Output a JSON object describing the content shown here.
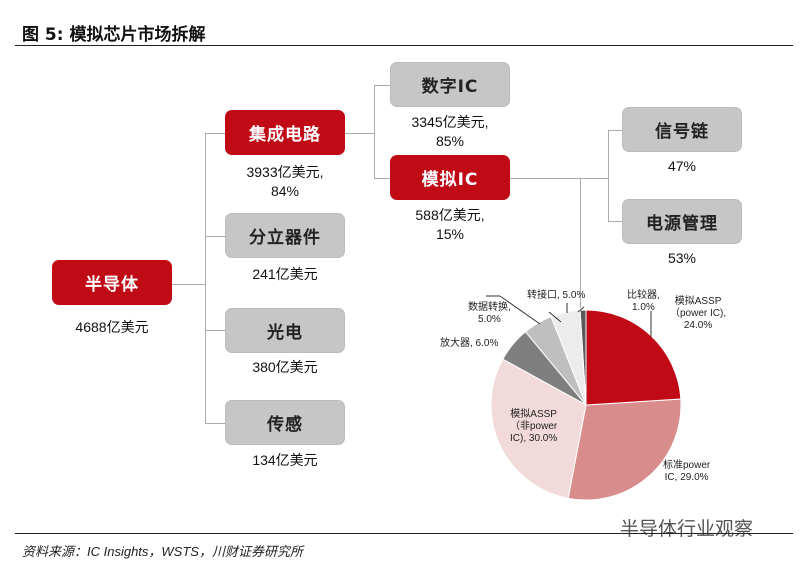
{
  "title": "图 5:  模拟芯片市场拆解",
  "nodes": {
    "semi": {
      "label": "半导体",
      "value": "4688亿美元"
    },
    "ic": {
      "label": "集成电路",
      "value": "3933亿美元,",
      "pct": "84%"
    },
    "discrete": {
      "label": "分立器件",
      "value": "241亿美元"
    },
    "opto": {
      "label": "光电",
      "value": "380亿美元"
    },
    "sensor": {
      "label": "传感",
      "value": "134亿美元"
    },
    "digital": {
      "label": "数字IC",
      "value": "3345亿美元,",
      "pct": "85%"
    },
    "analog": {
      "label": "模拟IC",
      "value": "588亿美元,",
      "pct": "15%"
    },
    "signal": {
      "label": "信号链",
      "pct": "47%"
    },
    "power": {
      "label": "电源管理",
      "pct": "53%"
    }
  },
  "colors": {
    "red": "#c00a16",
    "gray": "#c6c6c6"
  },
  "chart_data": {
    "type": "pie",
    "slices": [
      {
        "label": "模拟ASSP（power IC), 24.0%",
        "value": 24.0,
        "color": "#c00a16"
      },
      {
        "label": "标准power IC, 29.0%",
        "value": 29.0,
        "color": "#d98c8c"
      },
      {
        "label": "模拟ASSP（非power IC), 30.0%",
        "value": 30.0,
        "color": "#f2dada"
      },
      {
        "label": "放大器, 6.0%",
        "value": 6.0,
        "color": "#7f7f7f"
      },
      {
        "label": "数据转换, 5.0%",
        "value": 5.0,
        "color": "#bfbfbf"
      },
      {
        "label": "转接口, 5.0%",
        "value": 5.0,
        "color": "#ececec"
      },
      {
        "label": "比较器, 1.0%",
        "value": 1.0,
        "color": "#595959"
      }
    ],
    "labels": {
      "s0a": "模拟ASSP",
      "s0b": "（power IC),",
      "s0c": "24.0%",
      "s1a": "标准power",
      "s1b": "IC, 29.0%",
      "s2a": "模拟ASSP",
      "s2b": "（非power",
      "s2c": "IC), 30.0%",
      "s3": "放大器, 6.0%",
      "s4a": "数据转换,",
      "s4b": "5.0%",
      "s5": "转接口, 5.0%",
      "s6a": "比较器,",
      "s6b": "1.0%"
    }
  },
  "source": "资料来源：IC Insights，WSTS，川财证券研究所",
  "watermark": "半导体行业观察"
}
